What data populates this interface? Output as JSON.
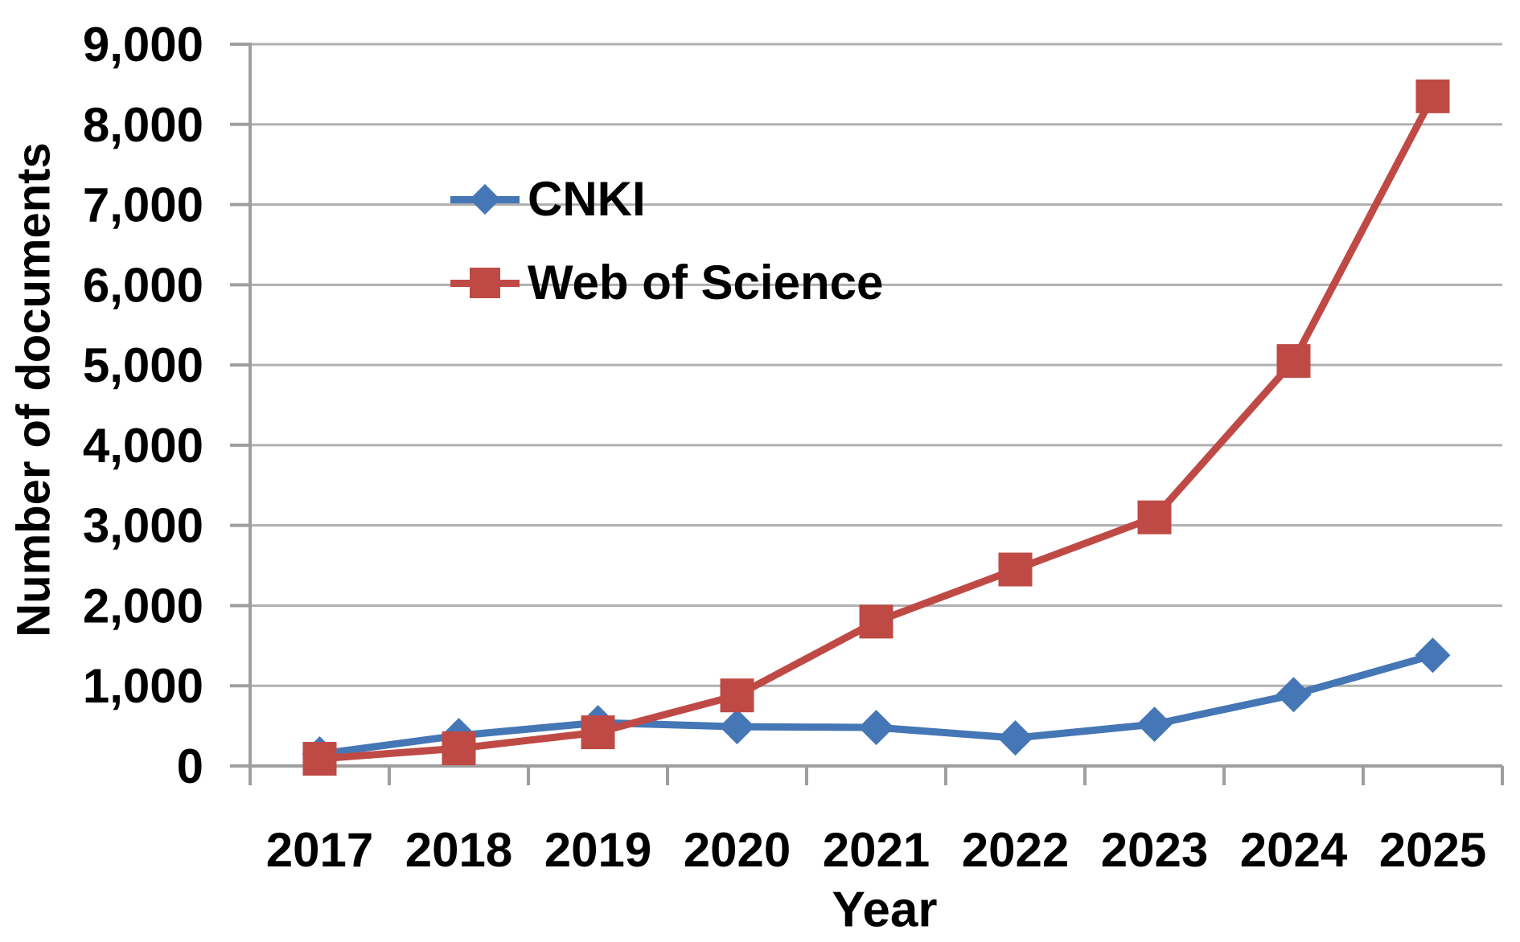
{
  "chart_data": {
    "type": "line",
    "categories": [
      "2017",
      "2018",
      "2019",
      "2020",
      "2021",
      "2022",
      "2023",
      "2024",
      "2025"
    ],
    "series": [
      {
        "name": "CNKI",
        "color": "#4576b5",
        "marker": "diamond",
        "values": [
          150,
          380,
          540,
          490,
          480,
          350,
          520,
          890,
          1380
        ]
      },
      {
        "name": "Web of Science",
        "color": "#bf4a45",
        "marker": "square",
        "values": [
          90,
          220,
          420,
          880,
          1800,
          2450,
          3100,
          5050,
          8350
        ]
      }
    ],
    "title": "",
    "xlabel": "Year",
    "ylabel": "Number of documents",
    "ylim": [
      0,
      9000
    ],
    "ytick_step": 1000,
    "ytick_labels": [
      "0",
      "1,000",
      "2,000",
      "3,000",
      "4,000",
      "5,000",
      "6,000",
      "7,000",
      "8,000",
      "9,000"
    ],
    "grid": true,
    "legend_position": "inside-upper-left",
    "grid_color": "#b0b0b0",
    "axis_color": "#9e9e9e",
    "text_color": "#000000",
    "background": "#ffffff"
  }
}
